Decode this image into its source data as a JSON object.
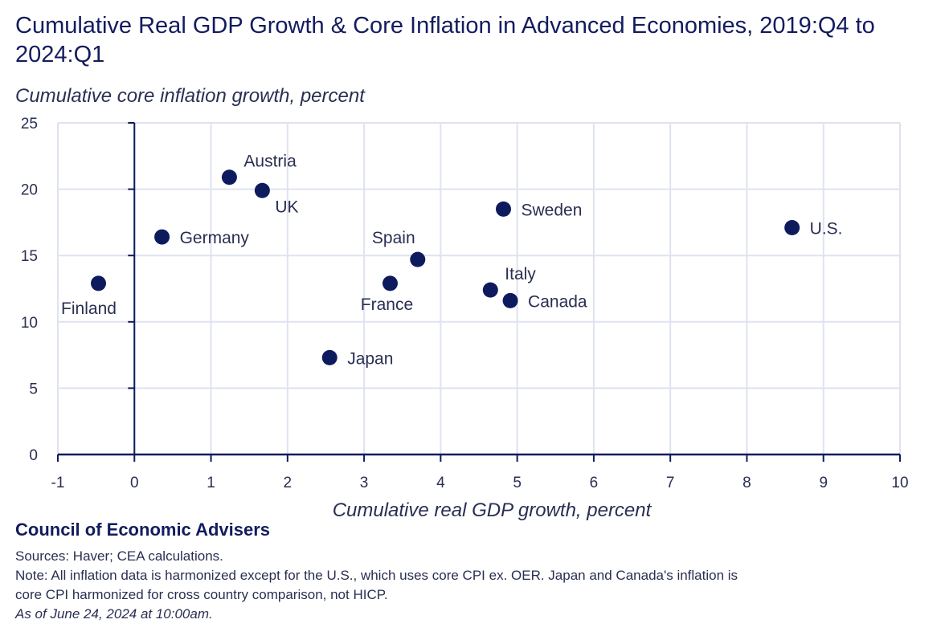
{
  "title": "Cumulative Real GDP Growth & Core Inflation in Advanced Economies, 2019:Q4 to 2024:Q1",
  "colors": {
    "marker": "#0d1b5e",
    "grid": "#dfe3ef",
    "axis": "#0d1b5e",
    "text": "#2a2f52"
  },
  "chart_data": {
    "type": "scatter",
    "title": "Cumulative Real GDP Growth & Core Inflation in Advanced Economies, 2019:Q4 to 2024:Q1",
    "xlabel": "Cumulative real GDP growth, percent",
    "ylabel": "Cumulative core inflation growth, percent",
    "xlim": [
      -1,
      10
    ],
    "ylim": [
      0,
      25
    ],
    "xticks": [
      -1,
      0,
      1,
      2,
      3,
      4,
      5,
      6,
      7,
      8,
      9,
      10
    ],
    "yticks": [
      0,
      5,
      10,
      15,
      20,
      25
    ],
    "grid": true,
    "legend": "none",
    "points": [
      {
        "label": "Finland",
        "x": -0.47,
        "y": 12.9,
        "label_pos": "below-left"
      },
      {
        "label": "Germany",
        "x": 0.36,
        "y": 16.4,
        "label_pos": "right"
      },
      {
        "label": "Austria",
        "x": 1.24,
        "y": 20.9,
        "label_pos": "above-right"
      },
      {
        "label": "UK",
        "x": 1.67,
        "y": 19.9,
        "label_pos": "below-right"
      },
      {
        "label": "Japan",
        "x": 2.55,
        "y": 7.3,
        "label_pos": "right"
      },
      {
        "label": "France",
        "x": 3.34,
        "y": 12.9,
        "label_pos": "below"
      },
      {
        "label": "Spain",
        "x": 3.7,
        "y": 14.7,
        "label_pos": "above-left"
      },
      {
        "label": "Sweden",
        "x": 4.82,
        "y": 18.5,
        "label_pos": "right"
      },
      {
        "label": "Italy",
        "x": 4.65,
        "y": 12.4,
        "label_pos": "above-right"
      },
      {
        "label": "Canada",
        "x": 4.91,
        "y": 11.6,
        "label_pos": "right"
      },
      {
        "label": "U.S.",
        "x": 8.59,
        "y": 17.1,
        "label_pos": "right"
      }
    ]
  },
  "footer": {
    "organization": "Council of Economic Advisers",
    "sources": "Sources: Haver; CEA calculations.",
    "note_line1": "Note: All inflation data is harmonized except for the U.S., which uses core CPI ex. OER. Japan and Canada's inflation is",
    "note_line2": "core CPI harmonized for cross country comparison, not HICP.",
    "as_of": "As of June 24, 2024 at 10:00am."
  }
}
